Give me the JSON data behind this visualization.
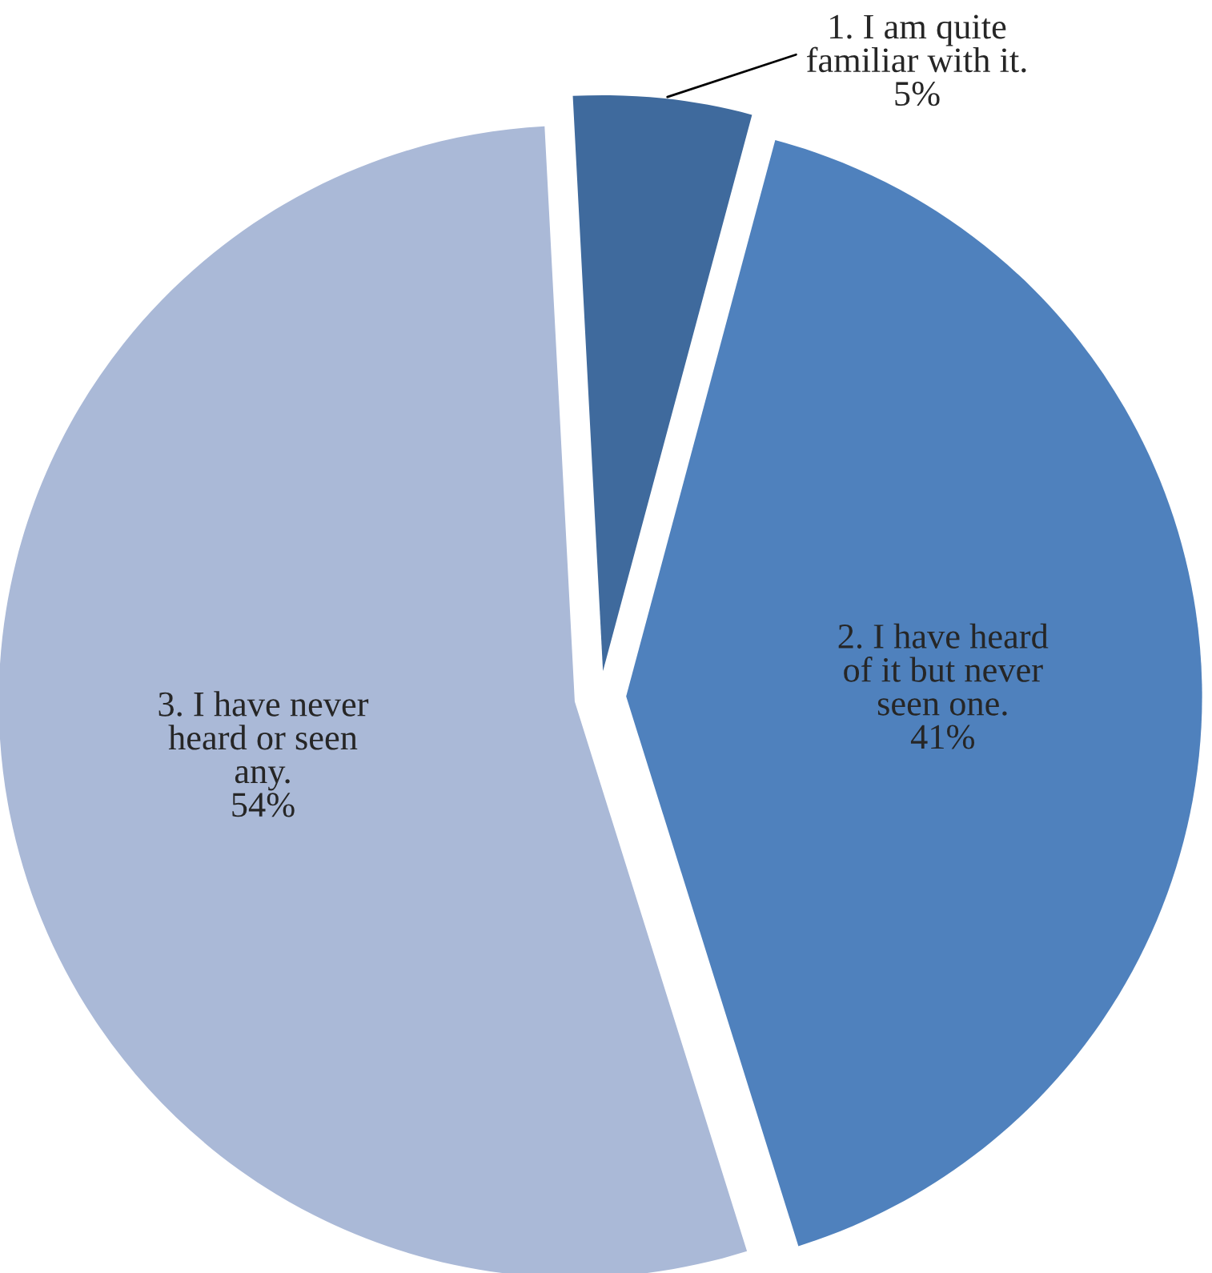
{
  "chart_data": {
    "type": "pie",
    "categories": [
      "1. I am quite\nfamiliar with it.",
      "2. I have heard\nof it but never\nseen one.",
      "3. I have never\nheard or seen\nany."
    ],
    "values": [
      5,
      41,
      54
    ],
    "colors": [
      "#3f6a9d",
      "#4f81bd",
      "#aab9d7"
    ],
    "value_labels": [
      "5%",
      "41%",
      "54%"
    ],
    "legend": false
  }
}
